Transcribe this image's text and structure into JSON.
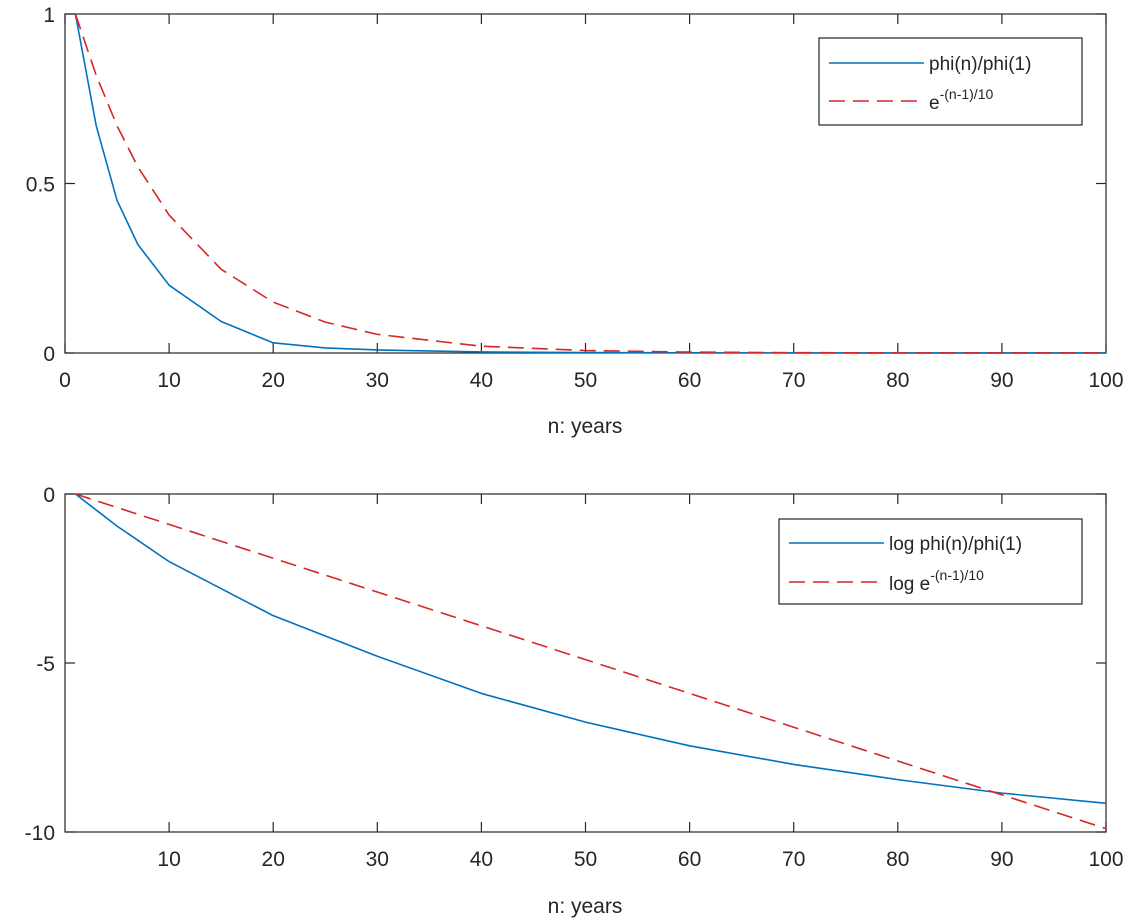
{
  "chart_data": [
    {
      "type": "line",
      "xlabel": "n: years",
      "ylabel": "",
      "xlim": [
        0,
        100
      ],
      "ylim": [
        0,
        1
      ],
      "xticks": [
        "0",
        "10",
        "20",
        "30",
        "40",
        "50",
        "60",
        "70",
        "80",
        "90",
        "100"
      ],
      "yticks": [
        "0",
        "0.5",
        "1"
      ],
      "legend_position": "top-right",
      "grid": false,
      "x": [
        1,
        3,
        5,
        7,
        10,
        15,
        20,
        25,
        30,
        40,
        50,
        60,
        70,
        80,
        90,
        100
      ],
      "series": [
        {
          "name": "phi(n)/phi(1)",
          "style": "solid",
          "color": "#0072BD",
          "values": [
            1.0,
            0.67,
            0.45,
            0.32,
            0.2,
            0.093,
            0.03,
            0.015,
            0.009,
            0.003,
            0.0012,
            0.00057,
            0.00033,
            0.0002,
            0.00014,
            0.0001
          ]
        },
        {
          "name_prefix": "e",
          "name_superscript": "-(n-1)/10",
          "style": "dashed",
          "color": "#D62728",
          "values": [
            1.0,
            0.819,
            0.67,
            0.549,
            0.407,
            0.247,
            0.15,
            0.091,
            0.055,
            0.02,
            0.0074,
            0.0027,
            0.001,
            0.00037,
            0.00014,
            5e-05
          ]
        }
      ]
    },
    {
      "type": "line",
      "xlabel": "n: years",
      "ylabel": "",
      "xlim": [
        0,
        100
      ],
      "ylim": [
        -10,
        0
      ],
      "xticks": [
        "10",
        "20",
        "30",
        "40",
        "50",
        "60",
        "70",
        "80",
        "90",
        "100"
      ],
      "xtick_values": [
        10,
        20,
        30,
        40,
        50,
        60,
        70,
        80,
        90,
        100
      ],
      "yticks": [
        "-10",
        "-5",
        "0"
      ],
      "legend_position": "top-right",
      "grid": false,
      "x": [
        1,
        5,
        10,
        20,
        30,
        40,
        50,
        60,
        70,
        80,
        90,
        100
      ],
      "series": [
        {
          "name": "log phi(n)/phi(1)",
          "style": "solid",
          "color": "#0072BD",
          "values": [
            0,
            -0.95,
            -2.0,
            -3.6,
            -4.8,
            -5.9,
            -6.75,
            -7.45,
            -8.0,
            -8.45,
            -8.85,
            -9.15
          ]
        },
        {
          "name_prefix": "log e",
          "name_superscript": "-(n-1)/10",
          "style": "dashed",
          "color": "#D62728",
          "values": [
            0,
            -0.4,
            -0.9,
            -1.9,
            -2.9,
            -3.9,
            -4.9,
            -5.9,
            -6.9,
            -7.9,
            -8.9,
            -9.9
          ]
        }
      ]
    }
  ]
}
